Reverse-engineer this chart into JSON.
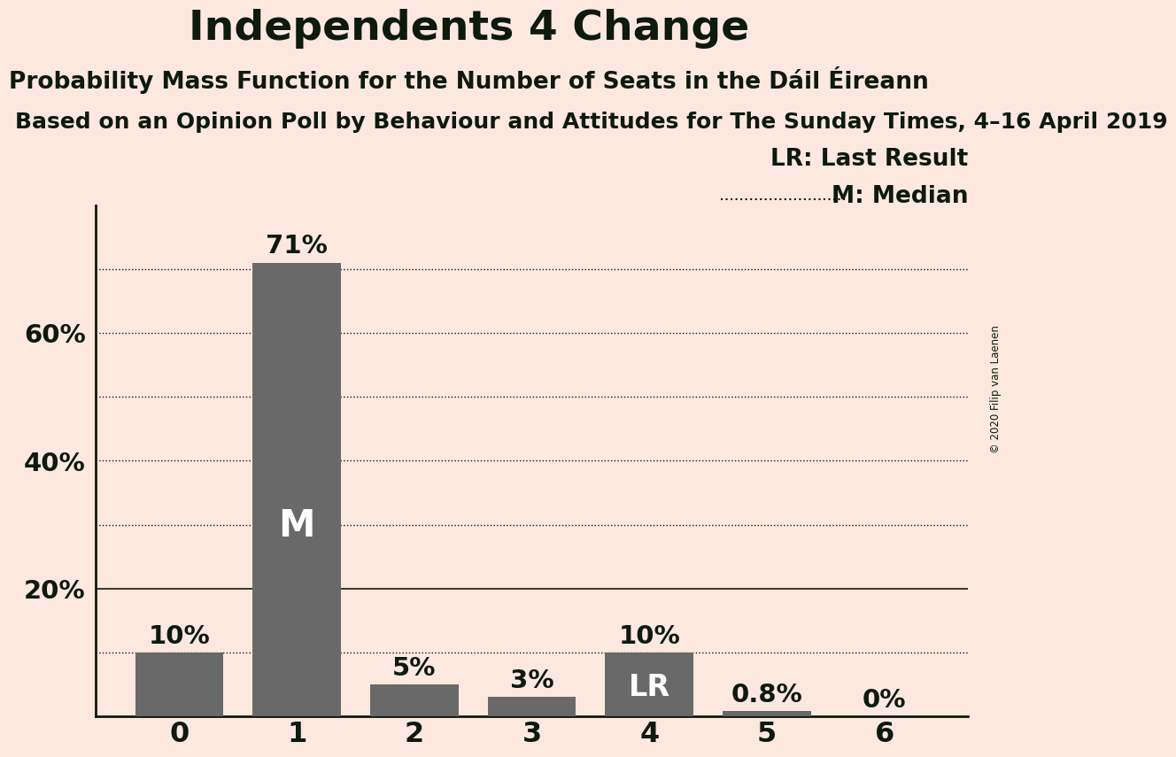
{
  "title": "Independents 4 Change",
  "subtitle": "Probability Mass Function for the Number of Seats in the Dáil Éireann",
  "source_line": "Based on an Opinion Poll by Behaviour and Attitudes for The Sunday Times, 4–16 April 2019",
  "copyright": "© 2020 Filip van Laenen",
  "categories": [
    0,
    1,
    2,
    3,
    4,
    5,
    6
  ],
  "values": [
    0.1,
    0.71,
    0.05,
    0.03,
    0.1,
    0.008,
    0.0
  ],
  "labels": [
    "10%",
    "71%",
    "5%",
    "3%",
    "10%",
    "0.8%",
    "0%"
  ],
  "bar_color": "#696969",
  "background_color": "#fce8de",
  "text_color": "#0d1a0d",
  "median_bar": 1,
  "last_result_bar": 4,
  "ylim": [
    0,
    0.8
  ],
  "yticks": [
    0.2,
    0.4,
    0.6
  ],
  "ytick_labels": [
    "20%",
    "40%",
    "60%"
  ],
  "solid_lines": [
    0.2
  ],
  "dotted_lines": [
    0.1,
    0.3,
    0.4,
    0.5,
    0.6,
    0.7
  ],
  "title_fontsize": 34,
  "subtitle_fontsize": 19,
  "source_fontsize": 18,
  "bar_label_fontsize": 21,
  "ytick_fontsize": 21,
  "xtick_fontsize": 23,
  "legend_fontsize": 19,
  "median_label_fontsize": 30,
  "lr_label_fontsize": 24
}
